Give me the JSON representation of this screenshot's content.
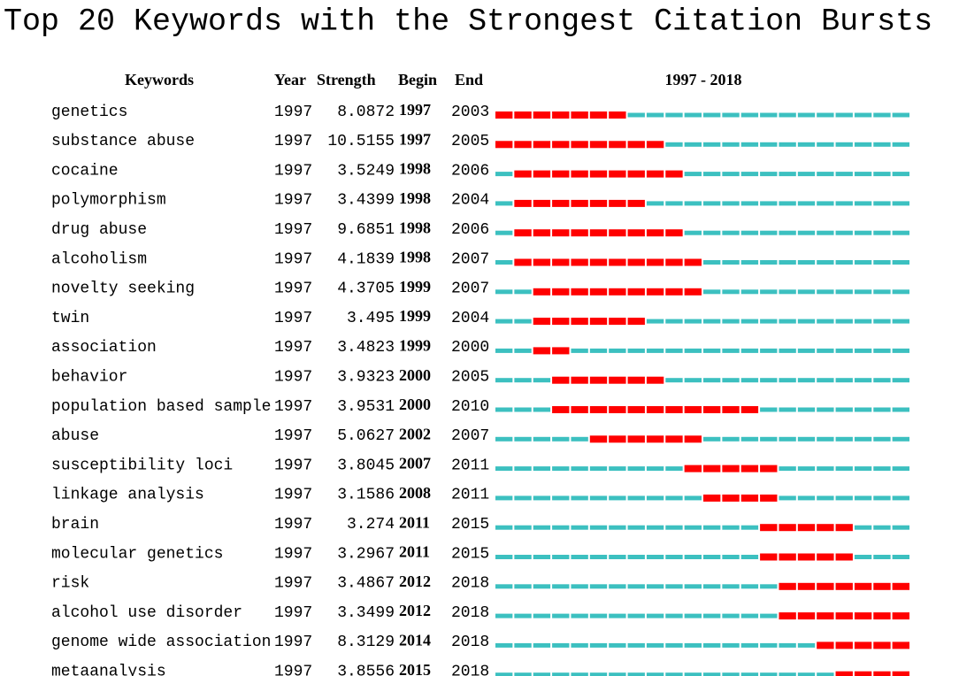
{
  "title": "Top 20 Keywords with the Strongest Citation Bursts",
  "header": [
    "Keywords",
    "Year",
    "Strength",
    "Begin",
    "End",
    "1997 - 2018"
  ],
  "rows": [
    [
      "genetics",
      1997,
      8.0872,
      1997,
      2003
    ],
    [
      "substance abuse",
      1997,
      10.5155,
      1997,
      2005
    ],
    [
      "cocaine",
      1997,
      3.5249,
      1998,
      2006
    ],
    [
      "polymorphism",
      1997,
      3.4399,
      1998,
      2004
    ],
    [
      "drug abuse",
      1997,
      9.6851,
      1998,
      2006
    ],
    [
      "alcoholism",
      1997,
      4.1839,
      1998,
      2007
    ],
    [
      "novelty seeking",
      1997,
      4.3705,
      1999,
      2007
    ],
    [
      "twin",
      1997,
      3.495,
      1999,
      2004
    ],
    [
      "association",
      1997,
      3.4823,
      1999,
      2000
    ],
    [
      "behavior",
      1997,
      3.9323,
      2000,
      2005
    ],
    [
      "population based sample",
      1997,
      3.9531,
      2000,
      2010
    ],
    [
      "abuse",
      1997,
      5.0627,
      2002,
      2007
    ],
    [
      "susceptibility loci",
      1997,
      3.8045,
      2007,
      2011
    ],
    [
      "linkage analysis",
      1997,
      3.1586,
      2008,
      2011
    ],
    [
      "brain",
      1997,
      3.274,
      2011,
      2015
    ],
    [
      "molecular genetics",
      1997,
      3.2967,
      2011,
      2015
    ],
    [
      "risk",
      1997,
      3.4867,
      2012,
      2018
    ],
    [
      "alcohol use disorder",
      1997,
      3.3499,
      2012,
      2018
    ],
    [
      "genome wide association",
      1997,
      8.3129,
      2014,
      2018
    ],
    [
      "metaanalysis",
      1997,
      3.8556,
      2015,
      2018
    ]
  ]
}
